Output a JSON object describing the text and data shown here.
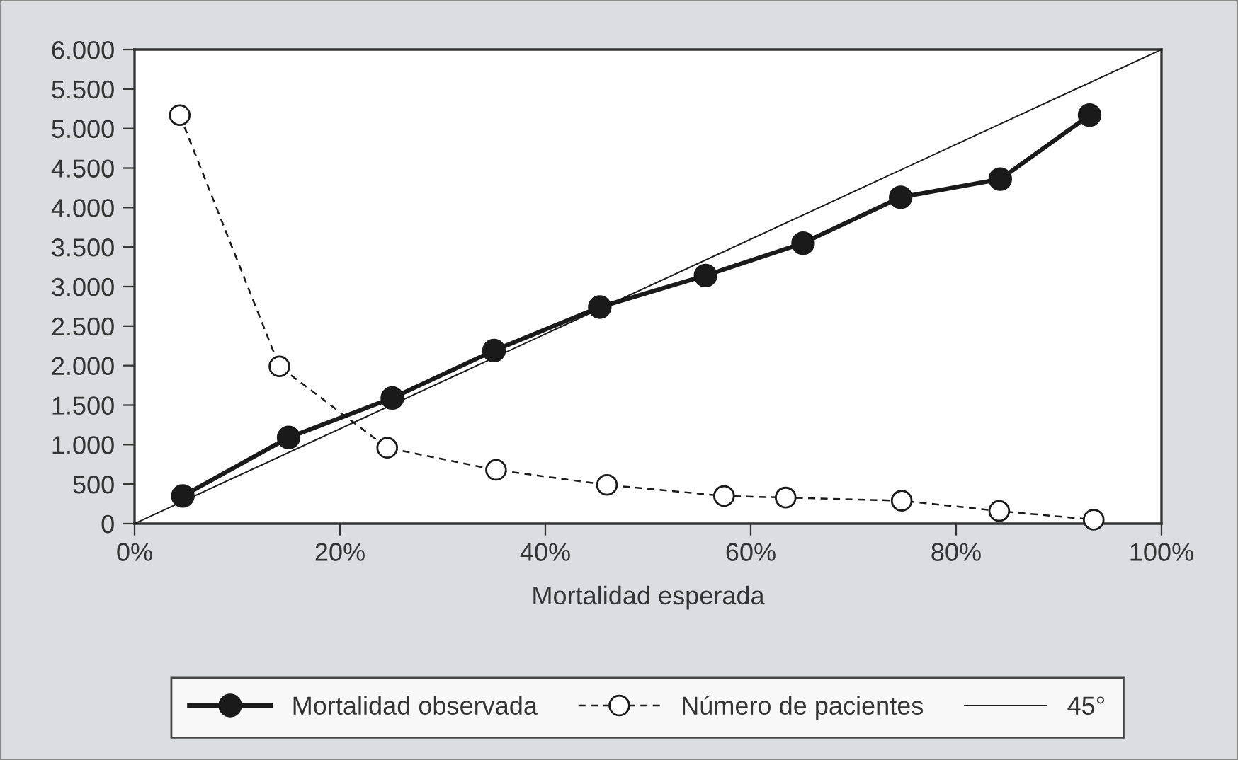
{
  "chart_data": {
    "type": "line",
    "xlabel": "Mortalidad esperada",
    "xlim": [
      0,
      100
    ],
    "ylim": [
      0,
      6000
    ],
    "xticks": [
      {
        "value": 0,
        "label": "0%"
      },
      {
        "value": 20,
        "label": "20%"
      },
      {
        "value": 40,
        "label": "40%"
      },
      {
        "value": 60,
        "label": "60%"
      },
      {
        "value": 80,
        "label": "80%"
      },
      {
        "value": 100,
        "label": "100%"
      }
    ],
    "yticks": [
      {
        "value": 0,
        "label": "0"
      },
      {
        "value": 500,
        "label": "500"
      },
      {
        "value": 1000,
        "label": "1.000"
      },
      {
        "value": 1500,
        "label": "1.500"
      },
      {
        "value": 2000,
        "label": "2.000"
      },
      {
        "value": 2500,
        "label": "2.500"
      },
      {
        "value": 3000,
        "label": "3.000"
      },
      {
        "value": 3500,
        "label": "3.500"
      },
      {
        "value": 4000,
        "label": "4.000"
      },
      {
        "value": 4500,
        "label": "4.500"
      },
      {
        "value": 5000,
        "label": "5.000"
      },
      {
        "value": 5500,
        "label": "5.500"
      },
      {
        "value": 6000,
        "label": "6.000"
      }
    ],
    "grid": false,
    "legend": "bottom",
    "series": [
      {
        "name": "Mortalidad observada",
        "color": "#1a1a1a",
        "marker": "circle",
        "line_style": "solid",
        "x": [
          4.7,
          15.0,
          25.1,
          35.0,
          45.3,
          55.6,
          65.1,
          74.6,
          84.3,
          93.0
        ],
        "values": [
          350,
          1090,
          1590,
          2190,
          2740,
          3140,
          3550,
          4130,
          4360,
          5170
        ]
      },
      {
        "name": "Número de pacientes",
        "color": "#1a1a1a",
        "marker": "circle_open",
        "line_style": "dashed",
        "x": [
          4.4,
          14.1,
          24.6,
          35.2,
          46.0,
          57.4,
          63.4,
          74.7,
          84.2,
          93.4
        ],
        "values": [
          5170,
          1990,
          960,
          680,
          490,
          350,
          330,
          290,
          160,
          50
        ]
      },
      {
        "name": "45°",
        "color": "#1a1a1a",
        "marker": "none",
        "line_style": "solid",
        "x": [
          0,
          100
        ],
        "values": [
          0,
          6000
        ]
      }
    ]
  }
}
